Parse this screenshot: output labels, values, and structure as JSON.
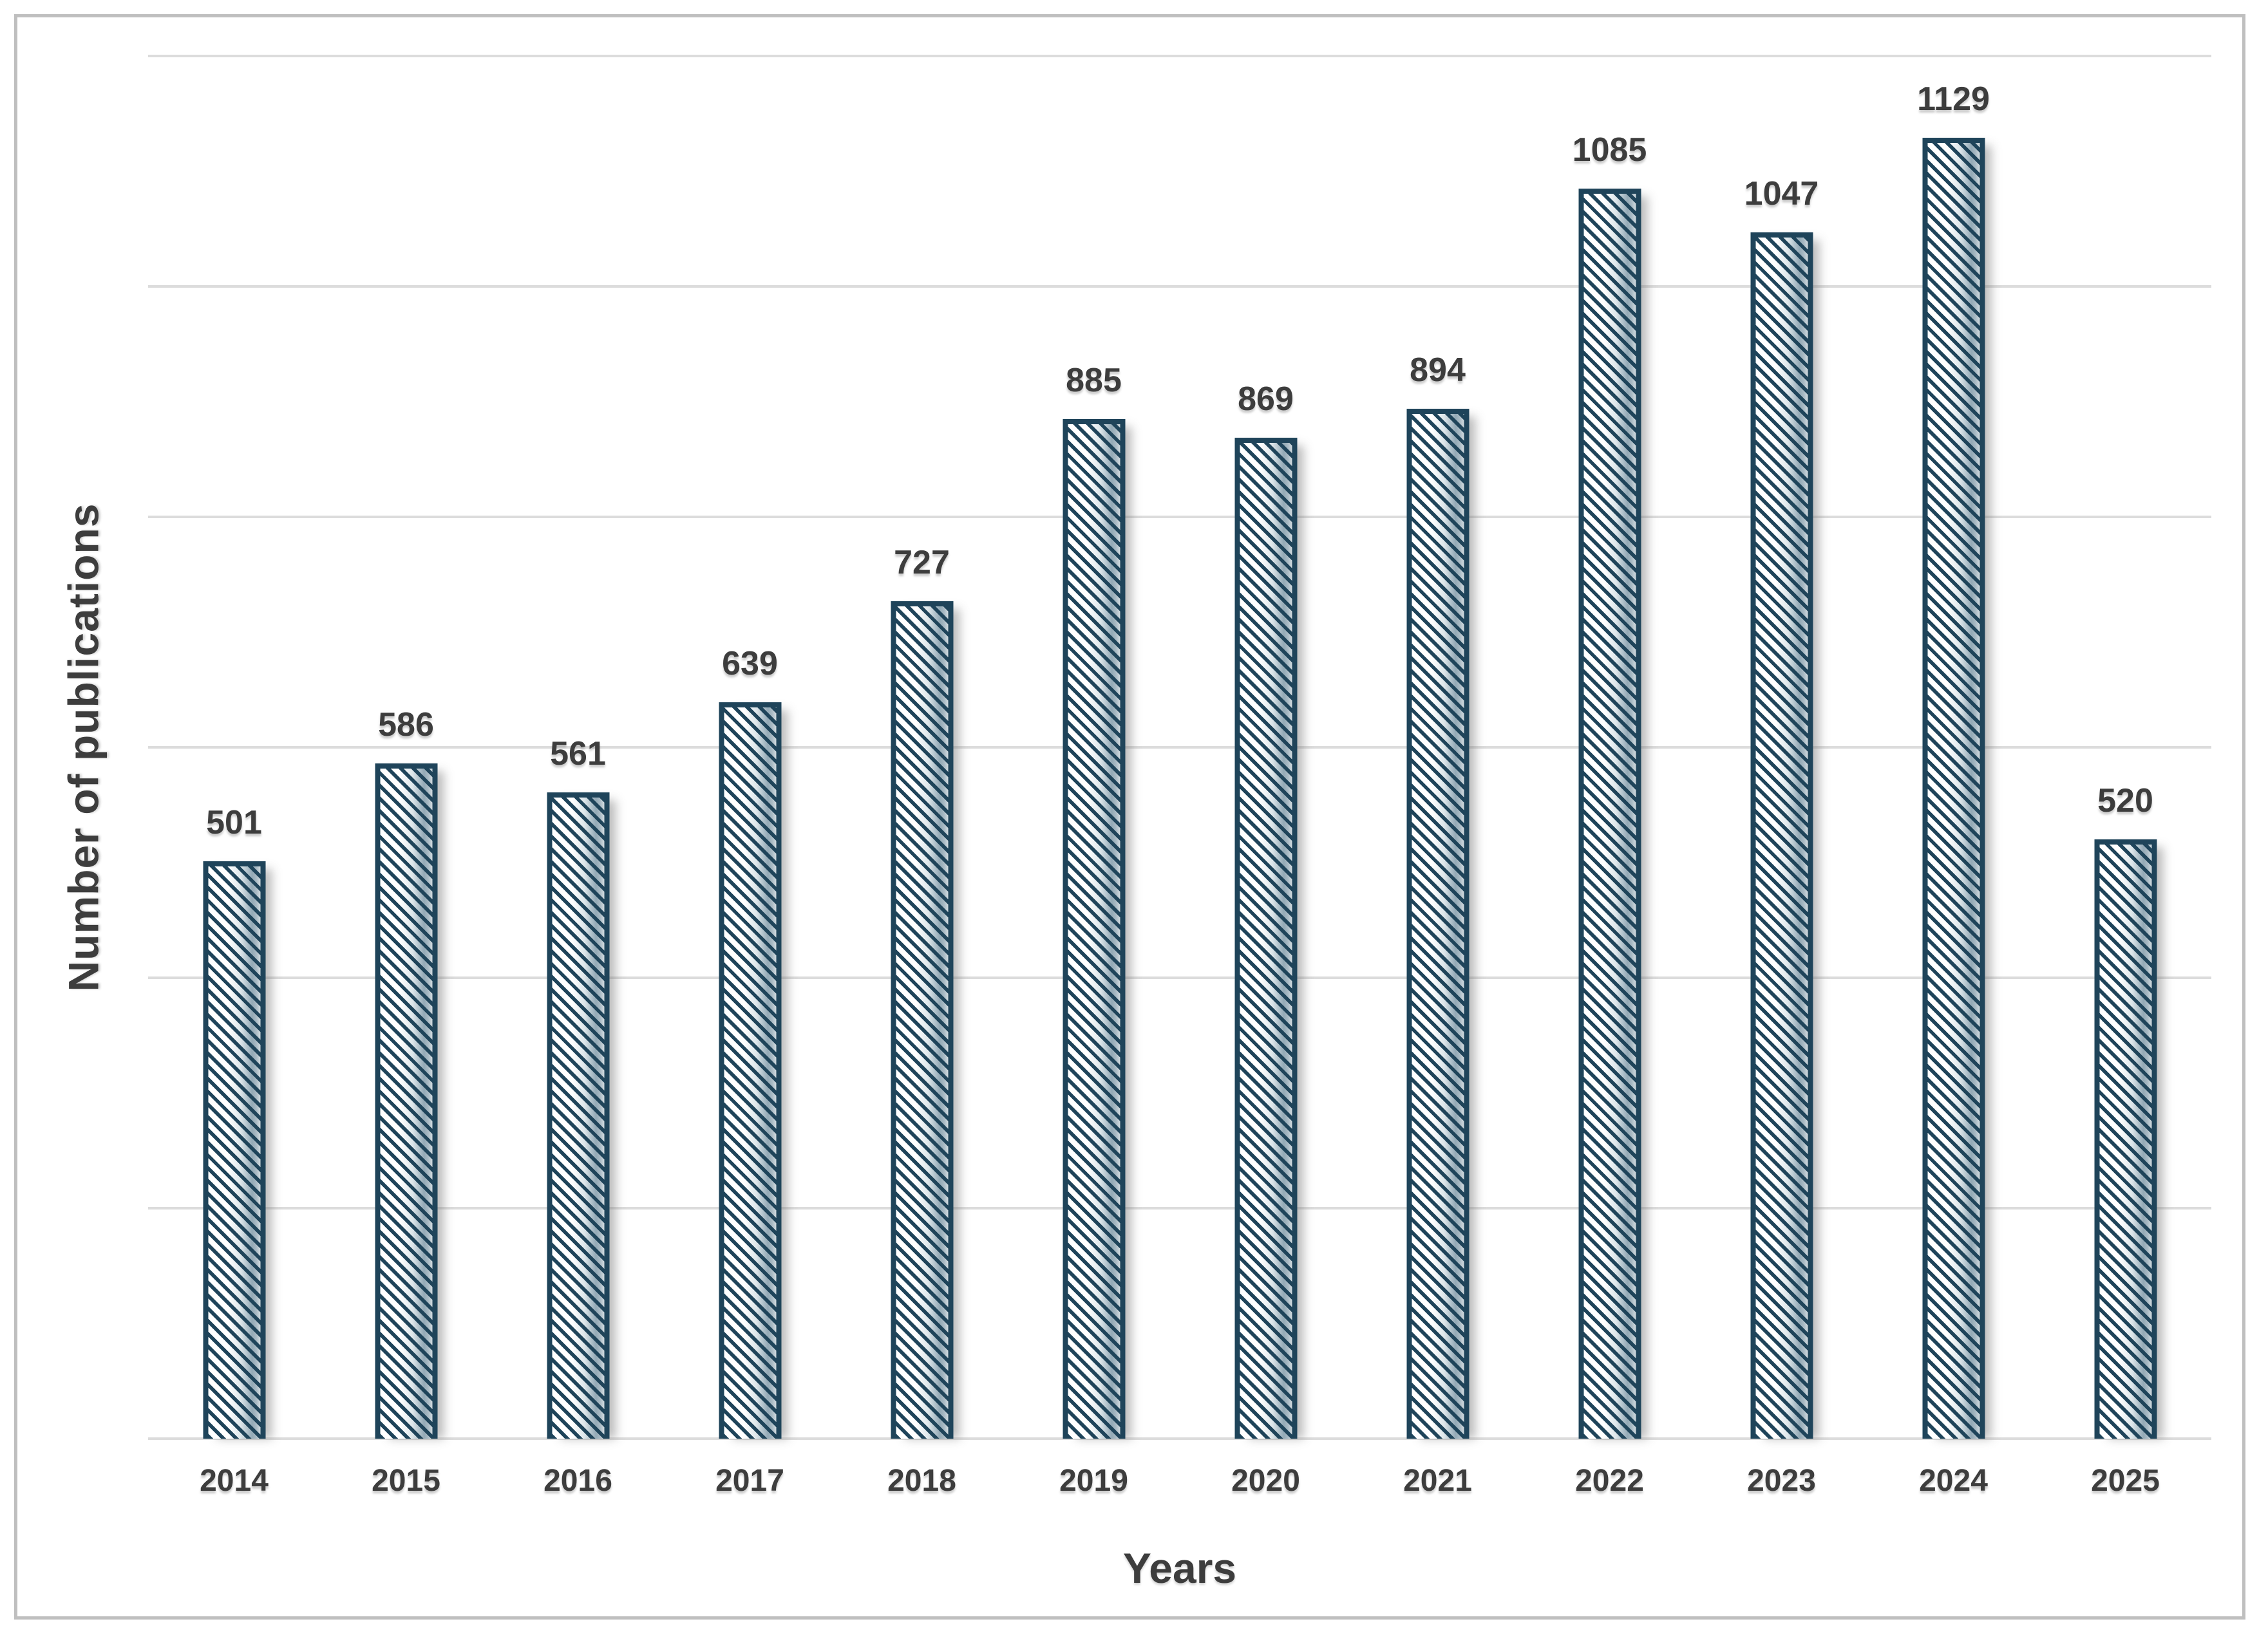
{
  "chart_data": {
    "type": "bar",
    "title": "",
    "categories": [
      "2014",
      "2015",
      "2016",
      "2017",
      "2018",
      "2019",
      "2020",
      "2021",
      "2022",
      "2023",
      "2024",
      "2025"
    ],
    "values": [
      501,
      586,
      561,
      639,
      727,
      885,
      869,
      894,
      1085,
      1047,
      1129,
      520
    ],
    "xlabel": "Years",
    "ylabel": "Number of publications",
    "ylim": [
      0,
      1200
    ],
    "gridline_interval": 200,
    "gridline_count": 7,
    "y_tick_labels_visible": false,
    "grid": true,
    "legend_position": "none",
    "data_labels_visible": true,
    "bar_style": {
      "fill_pattern": "diagonal-hatch-backslash",
      "hatch_color": "#1f445a",
      "border_color": "#1f445a",
      "gradient_tint_right": "#93a9b6",
      "background": "#ffffff"
    },
    "colors": {
      "text": "#3d3d3d",
      "gridline": "#dcdcdc",
      "frame_border": "#bfbfbf",
      "background": "#ffffff",
      "bar_navy": "#1f445a"
    }
  }
}
